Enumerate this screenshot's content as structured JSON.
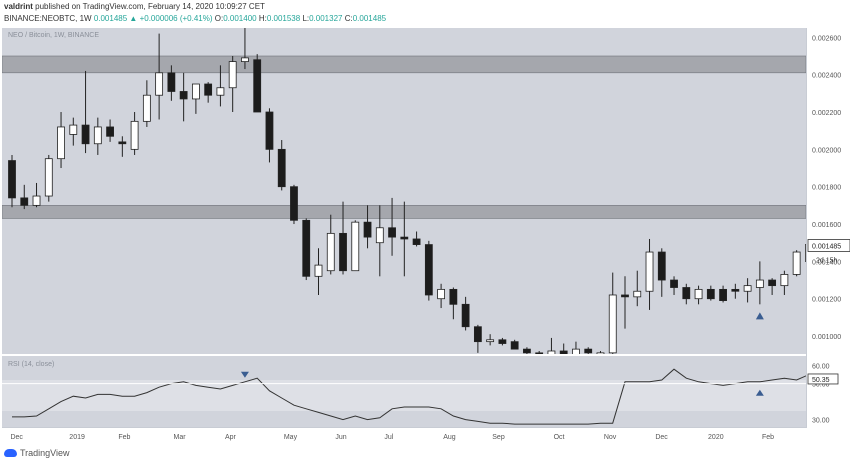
{
  "header": {
    "author": "valdrint",
    "published_text": "published on TradingView.com, February 14, 2020 10:09:27 CET",
    "symbol_line": "BINANCE:NEOBTC, 1W",
    "last_price": "0.001485",
    "change": "+0.000006 (+0.41%)",
    "o_label": "O:",
    "o_value": "0.001400",
    "h_label": "H:",
    "h_value": "0.001538",
    "l_label": "L:",
    "l_value": "0.001327",
    "c_label": "C:",
    "c_value": "0.001485"
  },
  "main_pane": {
    "label": "NEO / Bitcoin, 1W, BINANCE"
  },
  "rsi_pane": {
    "label": "RSI (14, close)"
  },
  "price_axis": {
    "ticks": [
      "0.002600",
      "0.002400",
      "0.002200",
      "0.002000",
      "0.001800",
      "0.001600",
      "0.001400",
      "0.001200",
      "0.001000"
    ],
    "current_price": "0.001485",
    "countdown": "2d 15h"
  },
  "rsi_axis": {
    "ticks": [
      "60.00",
      "50.00",
      "30.00"
    ],
    "current_value": "50.35"
  },
  "time_axis": {
    "labels": [
      "Dec",
      "2019",
      "Feb",
      "Mar",
      "Apr",
      "May",
      "Jun",
      "Jul",
      "Aug",
      "Sep",
      "Oct",
      "Nov",
      "Dec",
      "2020",
      "Feb"
    ]
  },
  "footer": {
    "brand": "TradingView"
  },
  "colors": {
    "up_candle": "#ffffff",
    "down_candle": "#1c1c1c",
    "zone": "#a5a7ad",
    "rsi_line": "#333333",
    "marker": "#3a5d91"
  },
  "chart_data": [
    {
      "type": "candlestick",
      "title": "NEO / Bitcoin, 1W, BINANCE",
      "ylim": [
        0.00088,
        0.00265
      ],
      "candles": [
        {
          "t": "2018-11-26",
          "o": 0.00194,
          "h": 0.00197,
          "l": 0.00169,
          "c": 0.00174
        },
        {
          "t": "2018-12-03",
          "o": 0.00174,
          "h": 0.00181,
          "l": 0.00168,
          "c": 0.0017
        },
        {
          "t": "2018-12-10",
          "o": 0.0017,
          "h": 0.00182,
          "l": 0.00169,
          "c": 0.00175
        },
        {
          "t": "2018-12-17",
          "o": 0.00175,
          "h": 0.00197,
          "l": 0.00172,
          "c": 0.00195
        },
        {
          "t": "2018-12-24",
          "o": 0.00195,
          "h": 0.0022,
          "l": 0.0019,
          "c": 0.00212
        },
        {
          "t": "2018-12-31",
          "o": 0.00208,
          "h": 0.00217,
          "l": 0.00202,
          "c": 0.00213
        },
        {
          "t": "2019-01-07",
          "o": 0.00213,
          "h": 0.00242,
          "l": 0.00198,
          "c": 0.00203
        },
        {
          "t": "2019-01-14",
          "o": 0.00203,
          "h": 0.00217,
          "l": 0.00197,
          "c": 0.00212
        },
        {
          "t": "2019-01-21",
          "o": 0.00212,
          "h": 0.00216,
          "l": 0.00204,
          "c": 0.00207
        },
        {
          "t": "2019-01-28",
          "o": 0.00204,
          "h": 0.00207,
          "l": 0.00196,
          "c": 0.00203
        },
        {
          "t": "2019-02-04",
          "o": 0.002,
          "h": 0.0022,
          "l": 0.00197,
          "c": 0.00215
        },
        {
          "t": "2019-02-11",
          "o": 0.00215,
          "h": 0.00237,
          "l": 0.00212,
          "c": 0.00229
        },
        {
          "t": "2019-02-18",
          "o": 0.00229,
          "h": 0.00262,
          "l": 0.00216,
          "c": 0.00241
        },
        {
          "t": "2019-02-25",
          "o": 0.00241,
          "h": 0.00245,
          "l": 0.00226,
          "c": 0.00231
        },
        {
          "t": "2019-03-04",
          "o": 0.00231,
          "h": 0.00241,
          "l": 0.00215,
          "c": 0.00227
        },
        {
          "t": "2019-03-11",
          "o": 0.00227,
          "h": 0.00234,
          "l": 0.00219,
          "c": 0.00235
        },
        {
          "t": "2019-03-18",
          "o": 0.00235,
          "h": 0.00236,
          "l": 0.00225,
          "c": 0.00229
        },
        {
          "t": "2019-03-25",
          "o": 0.00229,
          "h": 0.00245,
          "l": 0.00223,
          "c": 0.00233
        },
        {
          "t": "2019-04-01",
          "o": 0.00233,
          "h": 0.0025,
          "l": 0.0022,
          "c": 0.00247
        },
        {
          "t": "2019-04-08",
          "o": 0.00247,
          "h": 0.00267,
          "l": 0.00243,
          "c": 0.00249
        },
        {
          "t": "2019-04-15",
          "o": 0.00248,
          "h": 0.00251,
          "l": 0.0022,
          "c": 0.0022
        },
        {
          "t": "2019-04-22",
          "o": 0.0022,
          "h": 0.00222,
          "l": 0.00193,
          "c": 0.002
        },
        {
          "t": "2019-04-29",
          "o": 0.002,
          "h": 0.00205,
          "l": 0.00178,
          "c": 0.0018
        },
        {
          "t": "2019-05-06",
          "o": 0.0018,
          "h": 0.00181,
          "l": 0.0016,
          "c": 0.00162
        },
        {
          "t": "2019-05-13",
          "o": 0.00162,
          "h": 0.00163,
          "l": 0.0013,
          "c": 0.00132
        },
        {
          "t": "2019-05-20",
          "o": 0.00132,
          "h": 0.00147,
          "l": 0.00122,
          "c": 0.00138
        },
        {
          "t": "2019-05-27",
          "o": 0.00135,
          "h": 0.00165,
          "l": 0.00133,
          "c": 0.00155
        },
        {
          "t": "2019-06-03",
          "o": 0.00155,
          "h": 0.00172,
          "l": 0.00133,
          "c": 0.00135
        },
        {
          "t": "2019-06-10",
          "o": 0.00135,
          "h": 0.00162,
          "l": 0.00135,
          "c": 0.00161
        },
        {
          "t": "2019-06-17",
          "o": 0.00161,
          "h": 0.0017,
          "l": 0.00147,
          "c": 0.00153
        },
        {
          "t": "2019-06-24",
          "o": 0.0015,
          "h": 0.0017,
          "l": 0.00132,
          "c": 0.00158
        },
        {
          "t": "2019-07-01",
          "o": 0.00158,
          "h": 0.00174,
          "l": 0.00143,
          "c": 0.00153
        },
        {
          "t": "2019-07-08",
          "o": 0.00153,
          "h": 0.00172,
          "l": 0.00132,
          "c": 0.00152
        },
        {
          "t": "2019-07-15",
          "o": 0.00152,
          "h": 0.00156,
          "l": 0.00148,
          "c": 0.00149
        },
        {
          "t": "2019-07-22",
          "o": 0.00149,
          "h": 0.00151,
          "l": 0.00119,
          "c": 0.00122
        },
        {
          "t": "2019-07-29",
          "o": 0.0012,
          "h": 0.00128,
          "l": 0.00115,
          "c": 0.00125
        },
        {
          "t": "2019-08-05",
          "o": 0.00125,
          "h": 0.00126,
          "l": 0.00109,
          "c": 0.00117
        },
        {
          "t": "2019-08-12",
          "o": 0.00117,
          "h": 0.00121,
          "l": 0.00103,
          "c": 0.00105
        },
        {
          "t": "2019-08-19",
          "o": 0.00105,
          "h": 0.00106,
          "l": 0.00091,
          "c": 0.00097
        },
        {
          "t": "2019-08-26",
          "o": 0.00097,
          "h": 0.00101,
          "l": 0.00095,
          "c": 0.00098
        },
        {
          "t": "2019-09-02",
          "o": 0.00098,
          "h": 0.00099,
          "l": 0.00095,
          "c": 0.00096
        },
        {
          "t": "2019-09-09",
          "o": 0.00097,
          "h": 0.00098,
          "l": 0.00093,
          "c": 0.00093
        },
        {
          "t": "2019-09-16",
          "o": 0.00093,
          "h": 0.00094,
          "l": 0.00089,
          "c": 0.00091
        },
        {
          "t": "2019-09-23",
          "o": 0.00091,
          "h": 0.00092,
          "l": 0.00089,
          "c": 0.0009
        },
        {
          "t": "2019-09-30",
          "o": 0.0009,
          "h": 0.00099,
          "l": 0.00089,
          "c": 0.00092
        },
        {
          "t": "2019-10-07",
          "o": 0.00092,
          "h": 0.00096,
          "l": 0.00089,
          "c": 0.0009
        },
        {
          "t": "2019-10-14",
          "o": 0.0009,
          "h": 0.00097,
          "l": 0.00088,
          "c": 0.00093
        },
        {
          "t": "2019-10-21",
          "o": 0.00093,
          "h": 0.00094,
          "l": 0.00089,
          "c": 0.00091
        },
        {
          "t": "2019-10-28",
          "o": 0.0009,
          "h": 0.00092,
          "l": 0.00089,
          "c": 0.00091
        },
        {
          "t": "2019-11-04",
          "o": 0.00091,
          "h": 0.00134,
          "l": 0.0009,
          "c": 0.00122
        },
        {
          "t": "2019-11-11",
          "o": 0.00122,
          "h": 0.00132,
          "l": 0.00104,
          "c": 0.00121
        },
        {
          "t": "2019-11-18",
          "o": 0.00121,
          "h": 0.00135,
          "l": 0.00116,
          "c": 0.00124
        },
        {
          "t": "2019-11-25",
          "o": 0.00124,
          "h": 0.00152,
          "l": 0.00114,
          "c": 0.00145
        },
        {
          "t": "2019-12-02",
          "o": 0.00145,
          "h": 0.00147,
          "l": 0.00121,
          "c": 0.0013
        },
        {
          "t": "2019-12-09",
          "o": 0.0013,
          "h": 0.00132,
          "l": 0.00122,
          "c": 0.00126
        },
        {
          "t": "2019-12-16",
          "o": 0.00126,
          "h": 0.00128,
          "l": 0.00117,
          "c": 0.0012
        },
        {
          "t": "2019-12-23",
          "o": 0.0012,
          "h": 0.00127,
          "l": 0.00117,
          "c": 0.00125
        },
        {
          "t": "2019-12-30",
          "o": 0.00125,
          "h": 0.00127,
          "l": 0.00119,
          "c": 0.0012
        },
        {
          "t": "2020-01-06",
          "o": 0.00125,
          "h": 0.00127,
          "l": 0.00118,
          "c": 0.00119
        },
        {
          "t": "2020-01-13",
          "o": 0.00125,
          "h": 0.00128,
          "l": 0.0012,
          "c": 0.00124
        },
        {
          "t": "2020-01-20",
          "o": 0.00124,
          "h": 0.00131,
          "l": 0.00118,
          "c": 0.00127
        },
        {
          "t": "2020-01-27",
          "o": 0.00126,
          "h": 0.0014,
          "l": 0.00117,
          "c": 0.0013
        },
        {
          "t": "2020-02-03",
          "o": 0.0013,
          "h": 0.00131,
          "l": 0.00122,
          "c": 0.00127
        },
        {
          "t": "2020-02-10",
          "o": 0.00127,
          "h": 0.00135,
          "l": 0.00122,
          "c": 0.00133
        },
        {
          "t": "2020-02-17",
          "o": 0.00133,
          "h": 0.00146,
          "l": 0.00132,
          "c": 0.00145
        },
        {
          "t": "2020-02-24",
          "o": 0.0014,
          "h": 0.00154,
          "l": 0.00133,
          "c": 0.00149
        }
      ],
      "zones": [
        {
          "low": 0.00241,
          "high": 0.0025
        },
        {
          "low": 0.00163,
          "high": 0.0017
        }
      ],
      "markers": [
        {
          "t": "2019-04-08",
          "kind": "down-arrow",
          "position": "above"
        },
        {
          "t": "2020-01-27",
          "kind": "up-arrow",
          "position": "below"
        }
      ]
    },
    {
      "type": "line",
      "title": "RSI (14, close)",
      "ylim": [
        27,
        62
      ],
      "y_ticks": [
        60,
        50,
        30
      ],
      "band": [
        30,
        50
      ],
      "series": [
        {
          "values": [
            31.5,
            31.5,
            32,
            36,
            40,
            43,
            42,
            44,
            44,
            43,
            43,
            45,
            48,
            50,
            51,
            49,
            48,
            47,
            49,
            51,
            53,
            46,
            42,
            38,
            36,
            34,
            32,
            30,
            32,
            30,
            31,
            36,
            37,
            37,
            37,
            36,
            32,
            30,
            29,
            28,
            28,
            27.5,
            27.5,
            27.5,
            27.5,
            27.5,
            27.5,
            27.5,
            28,
            28,
            51,
            51,
            51,
            52,
            58,
            53,
            51,
            50,
            49,
            50,
            51,
            51,
            52,
            53,
            52,
            55,
            59
          ]
        }
      ],
      "markers": [
        {
          "index": 19,
          "kind": "down-arrow",
          "position": "above"
        },
        {
          "index": 61,
          "kind": "up-arrow",
          "position": "below"
        }
      ]
    }
  ]
}
